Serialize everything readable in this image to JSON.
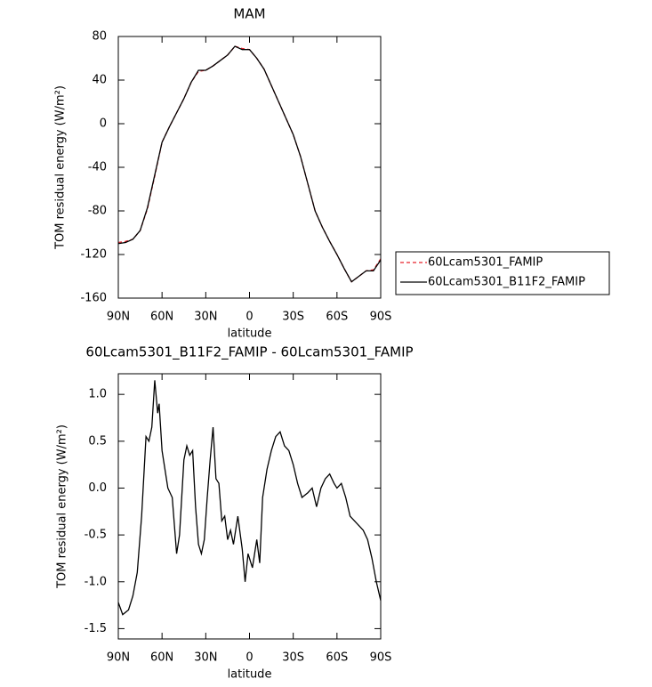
{
  "chart_data": [
    {
      "type": "line",
      "title": "MAM",
      "xlabel": "latitude",
      "ylabel": "TOM residual energy (W/m²)",
      "xlim": [
        90,
        -90
      ],
      "xticks": [
        {
          "value": 90,
          "label": "90N"
        },
        {
          "value": 60,
          "label": "60N"
        },
        {
          "value": 30,
          "label": "30N"
        },
        0,
        {
          "value": -30,
          "label": "30S"
        },
        {
          "value": -60,
          "label": "60S"
        },
        {
          "value": -90,
          "label": "90S"
        }
      ],
      "ylim": [
        -160,
        80
      ],
      "yticks": [
        -160,
        -120,
        -80,
        -40,
        0,
        40,
        80
      ],
      "legend": "right",
      "x": [
        90,
        85,
        80,
        75,
        70,
        65,
        60,
        55,
        50,
        45,
        40,
        35,
        30,
        25,
        20,
        15,
        10,
        5,
        0,
        -5,
        -10,
        -15,
        -20,
        -25,
        -30,
        -35,
        -40,
        -45,
        -50,
        -55,
        -60,
        -65,
        -70,
        -75,
        -80,
        -85,
        -90
      ],
      "series": [
        {
          "name": "60Lcam5301_FAMIP",
          "color": "#e8202a",
          "linestyle": "dashed",
          "values": [
            -109,
            -108,
            -106,
            -98,
            -78,
            -48,
            -17,
            -3,
            10,
            23,
            38,
            48,
            49,
            53,
            58,
            63,
            71,
            69,
            68,
            60,
            50,
            35,
            20,
            5,
            -10,
            -30,
            -55,
            -80,
            -95,
            -108,
            -120,
            -133,
            -145,
            -140,
            -135,
            -134,
            -124
          ]
        },
        {
          "name": "60Lcam5301_B11F2_FAMIP",
          "color": "#000000",
          "linestyle": "solid",
          "values": [
            -110,
            -109,
            -106,
            -98,
            -77,
            -47,
            -17,
            -3,
            10,
            23,
            38,
            49,
            49,
            53,
            58,
            63,
            71,
            68,
            68,
            60,
            50,
            35,
            20,
            5,
            -10,
            -30,
            -55,
            -80,
            -95,
            -108,
            -120,
            -133,
            -145,
            -140,
            -135,
            -135,
            -125
          ]
        }
      ]
    },
    {
      "type": "line",
      "title": "60Lcam5301_B11F2_FAMIP - 60Lcam5301_FAMIP",
      "xlabel": "latitude",
      "ylabel": "TOM residual energy (W/m²)",
      "xlim": [
        90,
        -90
      ],
      "xticks": [
        {
          "value": 90,
          "label": "90N"
        },
        {
          "value": 60,
          "label": "60N"
        },
        {
          "value": 30,
          "label": "30N"
        },
        0,
        {
          "value": -30,
          "label": "30S"
        },
        {
          "value": -60,
          "label": "60S"
        },
        {
          "value": -90,
          "label": "90S"
        }
      ],
      "ylim": [
        -1.61,
        1.22
      ],
      "yticks": [
        {
          "value": -1.5,
          "label": "-1.5"
        },
        {
          "value": -1,
          "label": "-1.0"
        },
        -0.5,
        {
          "value": 0,
          "label": "0.0"
        },
        0.5,
        {
          "value": 1,
          "label": "1.0"
        }
      ],
      "x": [
        90,
        87,
        83,
        80,
        77,
        74,
        71,
        69,
        67,
        65,
        63,
        62,
        60,
        58,
        56,
        53,
        50,
        48,
        45,
        43,
        41,
        39,
        37,
        35,
        33,
        31,
        29,
        27,
        25,
        23,
        21,
        19,
        17,
        15,
        13,
        11,
        8,
        5,
        3,
        1,
        -2,
        -5,
        -7,
        -9,
        -12,
        -15,
        -18,
        -21,
        -24,
        -27,
        -30,
        -33,
        -36,
        -40,
        -43,
        -46,
        -49,
        -52,
        -55,
        -58,
        -60,
        -63,
        -66,
        -69,
        -72,
        -75,
        -78,
        -81,
        -84,
        -87,
        -90
      ],
      "series": [
        {
          "color": "#000000",
          "linestyle": "solid",
          "values": [
            -1.22,
            -1.35,
            -1.3,
            -1.15,
            -0.9,
            -0.3,
            0.55,
            0.5,
            0.65,
            1.15,
            0.8,
            0.9,
            0.4,
            0.2,
            0.0,
            -0.1,
            -0.7,
            -0.5,
            0.3,
            0.45,
            0.35,
            0.4,
            -0.2,
            -0.6,
            -0.7,
            -0.55,
            -0.1,
            0.3,
            0.65,
            0.1,
            0.05,
            -0.35,
            -0.3,
            -0.55,
            -0.45,
            -0.6,
            -0.3,
            -0.65,
            -1.0,
            -0.7,
            -0.85,
            -0.55,
            -0.8,
            -0.1,
            0.2,
            0.4,
            0.55,
            0.6,
            0.45,
            0.4,
            0.25,
            0.05,
            -0.1,
            -0.05,
            0.0,
            -0.2,
            0.0,
            0.1,
            0.15,
            0.05,
            0.0,
            0.05,
            -0.1,
            -0.3,
            -0.35,
            -0.4,
            -0.45,
            -0.55,
            -0.75,
            -1.0,
            -1.2
          ]
        }
      ]
    }
  ]
}
